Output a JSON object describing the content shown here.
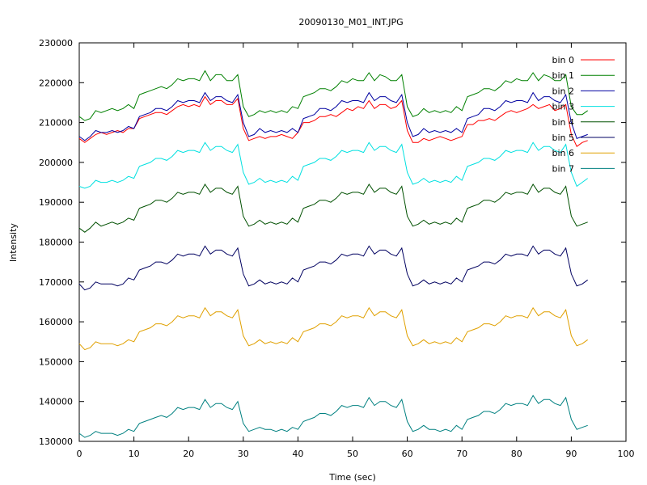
{
  "chart_data": {
    "type": "line",
    "title": "20090130_M01_INT.JPG",
    "xlabel": "Time (sec)",
    "ylabel": "Intensity",
    "xlim": [
      0,
      100
    ],
    "ylim": [
      130000,
      230000
    ],
    "xticks": [
      0,
      10,
      20,
      30,
      40,
      50,
      60,
      70,
      80,
      90,
      100
    ],
    "xtick_labels": [
      "0",
      "10",
      "20",
      "30",
      "40",
      "50",
      "60",
      "70",
      "80",
      "90",
      "100"
    ],
    "yticks": [
      130000,
      140000,
      150000,
      160000,
      170000,
      180000,
      190000,
      200000,
      210000,
      220000,
      230000
    ],
    "ytick_labels": [
      "130000",
      "140000",
      "150000",
      "160000",
      "170000",
      "180000",
      "190000",
      "200000",
      "210000",
      "220000",
      "230000"
    ],
    "grid": false,
    "legend_position": "top-right",
    "x": [
      0,
      1,
      2,
      3,
      4,
      5,
      6,
      7,
      8,
      9,
      10,
      11,
      12,
      13,
      14,
      15,
      16,
      17,
      18,
      19,
      20,
      21,
      22,
      23,
      24,
      25,
      26,
      27,
      28,
      29,
      30,
      31,
      32,
      33,
      34,
      35,
      36,
      37,
      38,
      39,
      40,
      41,
      42,
      43,
      44,
      45,
      46,
      47,
      48,
      49,
      50,
      51,
      52,
      53,
      54,
      55,
      56,
      57,
      58,
      59,
      60,
      61,
      62,
      63,
      64,
      65,
      66,
      67,
      68,
      69,
      70,
      71,
      72,
      73,
      74,
      75,
      76,
      77,
      78,
      79,
      80,
      81,
      82,
      83,
      84,
      85,
      86,
      87,
      88,
      89,
      90,
      91,
      92,
      93
    ],
    "series": [
      {
        "name": "bin 0",
        "color": "#ff0000",
        "values": [
          206000,
          205000,
          206000,
          207000,
          207500,
          207000,
          207500,
          208000,
          207500,
          208500,
          208500,
          211000,
          211500,
          212000,
          212500,
          212500,
          212000,
          213000,
          214000,
          214500,
          214000,
          214500,
          214000,
          216500,
          214500,
          215500,
          215500,
          214500,
          214500,
          216000,
          208500,
          205500,
          206000,
          206500,
          206000,
          206500,
          206500,
          207000,
          206500,
          206000,
          207500,
          210000,
          210000,
          210500,
          211500,
          211500,
          212000,
          211500,
          212500,
          213500,
          213000,
          214000,
          213500,
          215500,
          213500,
          214500,
          214500,
          213500,
          214000,
          215500,
          208000,
          205000,
          205000,
          206000,
          205500,
          206000,
          206500,
          206000,
          205500,
          206000,
          206500,
          209500,
          209500,
          210500,
          210500,
          211000,
          210500,
          211500,
          212500,
          213000,
          212500,
          213000,
          213500,
          214500,
          213500,
          214000,
          214500,
          213000,
          213500,
          214500,
          207000,
          204000,
          205000,
          205500
        ]
      },
      {
        "name": "bin 1",
        "color": "#008000",
        "values": [
          211500,
          210500,
          211000,
          213000,
          212500,
          213000,
          213500,
          213000,
          213500,
          214500,
          213500,
          217000,
          217500,
          218000,
          218500,
          219000,
          218500,
          219500,
          221000,
          220500,
          221000,
          221000,
          220500,
          223000,
          220500,
          222000,
          222000,
          220500,
          220500,
          222000,
          214000,
          211500,
          212000,
          213000,
          212500,
          213000,
          212500,
          213000,
          212500,
          214000,
          213500,
          216500,
          217000,
          217500,
          218500,
          218500,
          218000,
          219000,
          220500,
          220000,
          221000,
          220500,
          220500,
          222500,
          220500,
          222000,
          221500,
          220500,
          220500,
          222000,
          214000,
          211500,
          212000,
          213500,
          212500,
          213000,
          212500,
          213000,
          212500,
          214000,
          213000,
          216500,
          217000,
          217500,
          218500,
          218500,
          218000,
          219000,
          220500,
          220000,
          221000,
          220500,
          220500,
          222500,
          220500,
          222000,
          221500,
          220500,
          220500,
          222000,
          214000,
          212000,
          212000,
          213000
        ]
      },
      {
        "name": "bin 2",
        "color": "#0000a0",
        "values": [
          206500,
          205500,
          206500,
          208000,
          207500,
          207500,
          208000,
          207500,
          208000,
          209000,
          208500,
          211500,
          212000,
          212500,
          213500,
          213500,
          213000,
          214000,
          215500,
          215000,
          215500,
          215500,
          215000,
          217500,
          215500,
          216500,
          216500,
          215500,
          215000,
          217000,
          210000,
          206500,
          207000,
          208500,
          207500,
          208000,
          207500,
          208000,
          207500,
          208500,
          207500,
          211000,
          211500,
          212000,
          213500,
          213500,
          213000,
          214000,
          215500,
          215000,
          215500,
          215500,
          215000,
          217500,
          215500,
          216500,
          216500,
          215500,
          215000,
          217000,
          210000,
          206500,
          207000,
          208500,
          207500,
          208000,
          207500,
          208000,
          207500,
          208500,
          207500,
          211000,
          211500,
          212000,
          213500,
          213500,
          213000,
          214000,
          215500,
          215000,
          215500,
          215500,
          215000,
          217500,
          215500,
          216500,
          216500,
          215500,
          215000,
          217000,
          210000,
          206000,
          206500,
          207000
        ]
      },
      {
        "name": "bin 3",
        "color": "#00e0e0",
        "values": [
          194000,
          193500,
          194000,
          195500,
          195000,
          195000,
          195500,
          195000,
          195500,
          196500,
          196000,
          199000,
          199500,
          200000,
          201000,
          201000,
          200500,
          201500,
          203000,
          202500,
          203000,
          203000,
          202500,
          205000,
          203000,
          204000,
          204000,
          203000,
          202500,
          204500,
          197500,
          194500,
          195000,
          196000,
          195000,
          195500,
          195000,
          195500,
          195000,
          196500,
          195500,
          199000,
          199500,
          200000,
          201000,
          201000,
          200500,
          201500,
          203000,
          202500,
          203000,
          203000,
          202500,
          205000,
          203000,
          204000,
          204000,
          203000,
          202500,
          204500,
          197500,
          194500,
          195000,
          196000,
          195000,
          195500,
          195000,
          195500,
          195000,
          196500,
          195500,
          199000,
          199500,
          200000,
          201000,
          201000,
          200500,
          201500,
          203000,
          202500,
          203000,
          203000,
          202500,
          205000,
          203000,
          204000,
          204000,
          203000,
          202500,
          204500,
          197500,
          194000,
          195000,
          196000
        ]
      },
      {
        "name": "bin 4",
        "color": "#005000",
        "values": [
          183500,
          182500,
          183500,
          185000,
          184000,
          184500,
          185000,
          184500,
          185000,
          186000,
          185500,
          188500,
          189000,
          189500,
          190500,
          190500,
          190000,
          191000,
          192500,
          192000,
          192500,
          192500,
          192000,
          194500,
          192500,
          193500,
          193500,
          192500,
          192000,
          194000,
          186500,
          184000,
          184500,
          185500,
          184500,
          185000,
          184500,
          185000,
          184500,
          186000,
          185000,
          188500,
          189000,
          189500,
          190500,
          190500,
          190000,
          191000,
          192500,
          192000,
          192500,
          192500,
          192000,
          194500,
          192500,
          193500,
          193500,
          192500,
          192000,
          194000,
          186500,
          184000,
          184500,
          185500,
          184500,
          185000,
          184500,
          185000,
          184500,
          186000,
          185000,
          188500,
          189000,
          189500,
          190500,
          190500,
          190000,
          191000,
          192500,
          192000,
          192500,
          192500,
          192000,
          194500,
          192500,
          193500,
          193500,
          192500,
          192000,
          194000,
          186500,
          184000,
          184500,
          185000
        ]
      },
      {
        "name": "bin 5",
        "color": "#000060",
        "values": [
          169500,
          168000,
          168500,
          170000,
          169500,
          169500,
          169500,
          169000,
          169500,
          171000,
          170500,
          173000,
          173500,
          174000,
          175000,
          175000,
          174500,
          175500,
          177000,
          176500,
          177000,
          177000,
          176500,
          179000,
          177000,
          178000,
          178000,
          177000,
          176500,
          178500,
          172000,
          169000,
          169500,
          170500,
          169500,
          170000,
          169500,
          170000,
          169500,
          171000,
          170000,
          173000,
          173500,
          174000,
          175000,
          175000,
          174500,
          175500,
          177000,
          176500,
          177000,
          177000,
          176500,
          179000,
          177000,
          178000,
          178000,
          177000,
          176500,
          178500,
          172000,
          169000,
          169500,
          170500,
          169500,
          170000,
          169500,
          170000,
          169500,
          171000,
          170000,
          173000,
          173500,
          174000,
          175000,
          175000,
          174500,
          175500,
          177000,
          176500,
          177000,
          177000,
          176500,
          179000,
          177000,
          178000,
          178000,
          177000,
          176500,
          178500,
          172000,
          169000,
          169500,
          170500
        ]
      },
      {
        "name": "bin 6",
        "color": "#e0a000",
        "values": [
          154500,
          153000,
          153500,
          155000,
          154500,
          154500,
          154500,
          154000,
          154500,
          155500,
          155000,
          157500,
          158000,
          158500,
          159500,
          159500,
          159000,
          160000,
          161500,
          161000,
          161500,
          161500,
          161000,
          163500,
          161500,
          162500,
          162500,
          161500,
          161000,
          163000,
          156500,
          154000,
          154500,
          155500,
          154500,
          155000,
          154500,
          155000,
          154500,
          156000,
          155000,
          157500,
          158000,
          158500,
          159500,
          159500,
          159000,
          160000,
          161500,
          161000,
          161500,
          161500,
          161000,
          163500,
          161500,
          162500,
          162500,
          161500,
          161000,
          163000,
          156500,
          154000,
          154500,
          155500,
          154500,
          155000,
          154500,
          155000,
          154500,
          156000,
          155000,
          157500,
          158000,
          158500,
          159500,
          159500,
          159000,
          160000,
          161500,
          161000,
          161500,
          161500,
          161000,
          163500,
          161500,
          162500,
          162500,
          161500,
          161000,
          163000,
          156500,
          154000,
          154500,
          155500
        ]
      },
      {
        "name": "bin 7",
        "color": "#008080",
        "values": [
          132000,
          131000,
          131500,
          132500,
          132000,
          132000,
          132000,
          131500,
          132000,
          133000,
          132500,
          134500,
          135000,
          135500,
          136000,
          136500,
          136000,
          137000,
          138500,
          138000,
          138500,
          138500,
          138000,
          140500,
          138500,
          139500,
          139500,
          138500,
          138000,
          140000,
          134500,
          132500,
          133000,
          133500,
          133000,
          133000,
          132500,
          133000,
          132500,
          133500,
          133000,
          135000,
          135500,
          136000,
          137000,
          137000,
          136500,
          137500,
          139000,
          138500,
          139000,
          139000,
          138500,
          141000,
          139000,
          140000,
          140000,
          139000,
          138500,
          140500,
          135000,
          132500,
          133000,
          134000,
          133000,
          133000,
          132500,
          133000,
          132500,
          134000,
          133000,
          135500,
          136000,
          136500,
          137500,
          137500,
          137000,
          138000,
          139500,
          139000,
          139500,
          139500,
          139000,
          141500,
          139500,
          140500,
          140500,
          139500,
          139000,
          141000,
          135500,
          133000,
          133500,
          134000
        ]
      }
    ]
  }
}
